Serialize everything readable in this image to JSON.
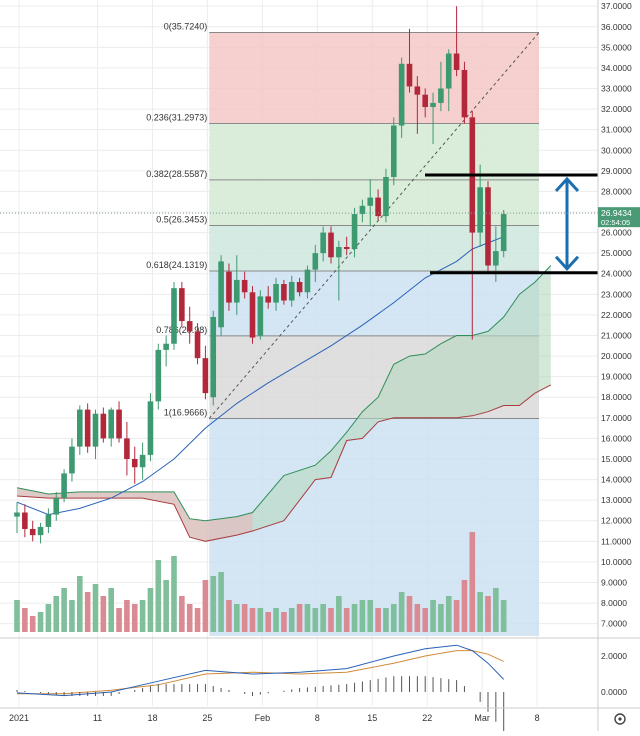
{
  "chart_data": {
    "type": "candlestick",
    "price_axis": {
      "ticks": [
        "37.0000",
        "36.0000",
        "35.0000",
        "34.0000",
        "33.0000",
        "32.0000",
        "31.0000",
        "30.0000",
        "29.0000",
        "28.0000",
        "27.0000",
        "26.0000",
        "25.0000",
        "24.0000",
        "23.0000",
        "22.0000",
        "21.0000",
        "20.0000",
        "19.0000",
        "18.0000",
        "17.0000",
        "16.0000",
        "15.0000",
        "14.0000",
        "13.0000",
        "12.0000",
        "11.0000",
        "10.0000",
        "9.0000",
        "8.0000",
        "7.0000"
      ],
      "ylim": [
        6.4,
        37.3
      ],
      "last_price": "26.9434",
      "countdown": "02:54:05"
    },
    "time_axis": {
      "labels": [
        "2021",
        "11",
        "18",
        "25",
        "Feb",
        "8",
        "15",
        "22",
        "Mar",
        "8"
      ],
      "positions_day": [
        0,
        10,
        17,
        24,
        31,
        38,
        45,
        52,
        59,
        66
      ]
    },
    "fibonacci": {
      "levels": [
        {
          "ratio": "0",
          "value": 35.724,
          "label": "0(35.7240)"
        },
        {
          "ratio": "0.236",
          "value": 31.2973,
          "label": "0.236(31.2973)"
        },
        {
          "ratio": "0.382",
          "value": 28.5587,
          "label": "0.382(28.5587)"
        },
        {
          "ratio": "0.5",
          "value": 26.3453,
          "label": "0.5(26.3453)"
        },
        {
          "ratio": "0.618",
          "value": 24.1319,
          "label": "0.618(24.1319)"
        },
        {
          "ratio": "0.786",
          "value": 20.98,
          "label": "0.786(20.98)"
        },
        {
          "ratio": "1",
          "value": 16.9666,
          "label": "1(16.9666)"
        }
      ],
      "zone_colors": [
        "#f4c7c7",
        "#d3ead3",
        "#d3ead3",
        "#cfe6df",
        "#cde0f2",
        "#d9d9d9",
        "#cde0f2"
      ]
    },
    "annotations": {
      "horizontal_lines": [
        28.8,
        24.05
      ],
      "arrow_range": [
        24.05,
        28.8
      ]
    },
    "candles": [
      {
        "d": 0,
        "o": 12.2,
        "h": 12.9,
        "l": 11.4,
        "c": 12.4
      },
      {
        "d": 1,
        "o": 12.4,
        "h": 12.8,
        "l": 11.2,
        "c": 11.6
      },
      {
        "d": 2,
        "o": 11.6,
        "h": 12.0,
        "l": 11.0,
        "c": 11.3
      },
      {
        "d": 3,
        "o": 11.3,
        "h": 11.9,
        "l": 10.9,
        "c": 11.7
      },
      {
        "d": 4,
        "o": 11.7,
        "h": 12.6,
        "l": 11.4,
        "c": 12.3
      },
      {
        "d": 5,
        "o": 12.3,
        "h": 13.4,
        "l": 12.0,
        "c": 13.1
      },
      {
        "d": 6,
        "o": 13.1,
        "h": 14.5,
        "l": 12.9,
        "c": 14.3
      },
      {
        "d": 7,
        "o": 14.3,
        "h": 16.0,
        "l": 13.9,
        "c": 15.6
      },
      {
        "d": 8,
        "o": 15.6,
        "h": 17.6,
        "l": 15.2,
        "c": 17.4
      },
      {
        "d": 9,
        "o": 17.4,
        "h": 17.7,
        "l": 15.3,
        "c": 15.6
      },
      {
        "d": 10,
        "o": 15.6,
        "h": 17.4,
        "l": 15.0,
        "c": 17.2
      },
      {
        "d": 11,
        "o": 17.2,
        "h": 17.5,
        "l": 15.8,
        "c": 16.0
      },
      {
        "d": 12,
        "o": 16.0,
        "h": 17.5,
        "l": 15.6,
        "c": 17.4
      },
      {
        "d": 13,
        "o": 17.4,
        "h": 17.8,
        "l": 15.8,
        "c": 16.0
      },
      {
        "d": 14,
        "o": 16.0,
        "h": 16.8,
        "l": 14.2,
        "c": 15.0
      },
      {
        "d": 15,
        "o": 15.0,
        "h": 15.6,
        "l": 13.8,
        "c": 14.6
      },
      {
        "d": 16,
        "o": 14.6,
        "h": 15.8,
        "l": 14.0,
        "c": 15.2
      },
      {
        "d": 17,
        "o": 15.2,
        "h": 18.2,
        "l": 14.9,
        "c": 17.8
      },
      {
        "d": 18,
        "o": 17.8,
        "h": 20.6,
        "l": 17.4,
        "c": 20.3
      },
      {
        "d": 19,
        "o": 20.3,
        "h": 21.0,
        "l": 19.5,
        "c": 20.6
      },
      {
        "d": 20,
        "o": 20.6,
        "h": 23.6,
        "l": 20.3,
        "c": 23.3
      },
      {
        "d": 21,
        "o": 23.3,
        "h": 23.6,
        "l": 21.4,
        "c": 21.7
      },
      {
        "d": 22,
        "o": 21.7,
        "h": 22.4,
        "l": 20.6,
        "c": 21.2
      },
      {
        "d": 23,
        "o": 21.2,
        "h": 21.6,
        "l": 19.6,
        "c": 19.9
      },
      {
        "d": 24,
        "o": 19.9,
        "h": 20.5,
        "l": 17.9,
        "c": 18.2
      },
      {
        "d": 25,
        "o": 18.0,
        "h": 22.2,
        "l": 17.6,
        "c": 21.9
      },
      {
        "d": 26,
        "o": 21.4,
        "h": 24.9,
        "l": 21.0,
        "c": 24.6
      },
      {
        "d": 27,
        "o": 24.1,
        "h": 24.5,
        "l": 22.2,
        "c": 22.6
      },
      {
        "d": 28,
        "o": 22.6,
        "h": 24.9,
        "l": 22.0,
        "c": 23.7
      },
      {
        "d": 29,
        "o": 23.7,
        "h": 24.1,
        "l": 22.8,
        "c": 23.1
      },
      {
        "d": 30,
        "o": 23.1,
        "h": 23.4,
        "l": 20.6,
        "c": 20.9
      },
      {
        "d": 31,
        "o": 21.0,
        "h": 23.2,
        "l": 20.8,
        "c": 22.9
      },
      {
        "d": 32,
        "o": 22.9,
        "h": 23.4,
        "l": 22.3,
        "c": 22.6
      },
      {
        "d": 33,
        "o": 22.6,
        "h": 23.8,
        "l": 22.2,
        "c": 23.5
      },
      {
        "d": 34,
        "o": 23.5,
        "h": 23.7,
        "l": 22.5,
        "c": 22.7
      },
      {
        "d": 35,
        "o": 22.7,
        "h": 23.9,
        "l": 22.4,
        "c": 23.6
      },
      {
        "d": 36,
        "o": 23.6,
        "h": 23.8,
        "l": 22.9,
        "c": 23.1
      },
      {
        "d": 37,
        "o": 23.1,
        "h": 24.4,
        "l": 22.8,
        "c": 24.2
      },
      {
        "d": 38,
        "o": 24.2,
        "h": 25.4,
        "l": 23.6,
        "c": 25.0
      },
      {
        "d": 39,
        "o": 25.0,
        "h": 26.3,
        "l": 24.6,
        "c": 26.0
      },
      {
        "d": 40,
        "o": 26.0,
        "h": 26.3,
        "l": 24.5,
        "c": 24.8
      },
      {
        "d": 41,
        "o": 24.8,
        "h": 25.6,
        "l": 22.7,
        "c": 25.3
      },
      {
        "d": 42,
        "o": 25.3,
        "h": 25.8,
        "l": 24.9,
        "c": 25.2
      },
      {
        "d": 43,
        "o": 25.2,
        "h": 27.2,
        "l": 24.8,
        "c": 26.9
      },
      {
        "d": 44,
        "o": 26.9,
        "h": 27.6,
        "l": 26.5,
        "c": 27.3
      },
      {
        "d": 45,
        "o": 27.3,
        "h": 28.6,
        "l": 26.3,
        "c": 27.7
      },
      {
        "d": 46,
        "o": 27.7,
        "h": 28.1,
        "l": 26.6,
        "c": 26.8
      },
      {
        "d": 47,
        "o": 26.8,
        "h": 29.1,
        "l": 26.5,
        "c": 28.7
      },
      {
        "d": 48,
        "o": 28.7,
        "h": 31.6,
        "l": 28.3,
        "c": 31.2
      },
      {
        "d": 49,
        "o": 31.2,
        "h": 34.5,
        "l": 30.6,
        "c": 34.2
      },
      {
        "d": 50,
        "o": 34.2,
        "h": 35.9,
        "l": 32.8,
        "c": 33.1
      },
      {
        "d": 51,
        "o": 33.1,
        "h": 33.6,
        "l": 30.8,
        "c": 32.7
      },
      {
        "d": 52,
        "o": 32.7,
        "h": 33.0,
        "l": 31.6,
        "c": 32.1
      },
      {
        "d": 53,
        "o": 32.1,
        "h": 32.8,
        "l": 30.3,
        "c": 32.3
      },
      {
        "d": 54,
        "o": 32.3,
        "h": 34.3,
        "l": 31.9,
        "c": 33.0
      },
      {
        "d": 55,
        "o": 33.0,
        "h": 34.9,
        "l": 31.9,
        "c": 34.7
      },
      {
        "d": 56,
        "o": 34.7,
        "h": 37.0,
        "l": 33.6,
        "c": 33.9
      },
      {
        "d": 57,
        "o": 33.9,
        "h": 34.3,
        "l": 31.3,
        "c": 31.6
      },
      {
        "d": 58,
        "o": 31.6,
        "h": 31.9,
        "l": 20.8,
        "c": 26.0
      },
      {
        "d": 59,
        "o": 26.0,
        "h": 29.3,
        "l": 25.3,
        "c": 28.2
      },
      {
        "d": 60,
        "o": 28.2,
        "h": 28.5,
        "l": 24.1,
        "c": 24.4
      },
      {
        "d": 61,
        "o": 24.4,
        "h": 26.3,
        "l": 23.6,
        "c": 25.1
      },
      {
        "d": 62,
        "o": 25.1,
        "h": 27.1,
        "l": 24.8,
        "c": 26.9
      }
    ],
    "ma_line": [
      [
        0,
        12.9
      ],
      [
        4,
        12.3
      ],
      [
        8,
        12.6
      ],
      [
        12,
        13.1
      ],
      [
        16,
        13.9
      ],
      [
        20,
        15.0
      ],
      [
        24,
        16.5
      ],
      [
        28,
        17.7
      ],
      [
        32,
        18.7
      ],
      [
        36,
        19.6
      ],
      [
        40,
        20.5
      ],
      [
        44,
        21.5
      ],
      [
        48,
        22.6
      ],
      [
        52,
        23.8
      ],
      [
        56,
        24.6
      ],
      [
        58,
        25.2
      ],
      [
        60,
        25.5
      ],
      [
        62,
        25.8
      ]
    ],
    "cloud_upper": [
      [
        0,
        13.6
      ],
      [
        4,
        13.3
      ],
      [
        8,
        13.4
      ],
      [
        12,
        13.4
      ],
      [
        16,
        13.4
      ],
      [
        20,
        13.4
      ],
      [
        22,
        12.1
      ],
      [
        24,
        12.0
      ],
      [
        28,
        12.2
      ],
      [
        30,
        12.4
      ],
      [
        34,
        14.2
      ],
      [
        38,
        14.7
      ],
      [
        40,
        15.4
      ],
      [
        42,
        16.3
      ],
      [
        44,
        17.3
      ],
      [
        46,
        18.0
      ],
      [
        48,
        19.6
      ],
      [
        50,
        20.0
      ],
      [
        52,
        20.1
      ],
      [
        54,
        20.6
      ],
      [
        56,
        21.0
      ],
      [
        58,
        21.0
      ],
      [
        60,
        21.2
      ],
      [
        62,
        21.9
      ],
      [
        64,
        23.0
      ],
      [
        66,
        23.6
      ],
      [
        68,
        24.4
      ]
    ],
    "cloud_lower": [
      [
        0,
        13.2
      ],
      [
        4,
        13.1
      ],
      [
        8,
        13.1
      ],
      [
        12,
        13.1
      ],
      [
        16,
        13.1
      ],
      [
        20,
        12.8
      ],
      [
        22,
        11.2
      ],
      [
        24,
        11.0
      ],
      [
        28,
        11.3
      ],
      [
        30,
        11.5
      ],
      [
        34,
        12.0
      ],
      [
        38,
        14.0
      ],
      [
        40,
        14.1
      ],
      [
        42,
        15.9
      ],
      [
        44,
        16.0
      ],
      [
        46,
        16.8
      ],
      [
        48,
        17.0
      ],
      [
        50,
        17.0
      ],
      [
        52,
        17.0
      ],
      [
        54,
        17.0
      ],
      [
        56,
        17.0
      ],
      [
        58,
        17.1
      ],
      [
        60,
        17.3
      ],
      [
        62,
        17.6
      ],
      [
        64,
        17.6
      ],
      [
        66,
        18.2
      ],
      [
        68,
        18.6
      ]
    ],
    "volume": [
      0.8,
      0.6,
      0.4,
      0.5,
      0.7,
      0.9,
      1.1,
      0.8,
      1.4,
      1.0,
      1.2,
      0.9,
      1.1,
      0.6,
      0.8,
      0.7,
      0.8,
      1.1,
      1.8,
      1.3,
      1.9,
      0.9,
      0.7,
      0.6,
      1.3,
      1.4,
      1.5,
      0.8,
      0.7,
      0.7,
      0.6,
      0.6,
      0.5,
      0.6,
      0.5,
      0.6,
      0.7,
      0.7,
      0.6,
      0.7,
      0.6,
      0.9,
      0.6,
      0.7,
      0.8,
      0.8,
      0.6,
      0.6,
      0.7,
      1.0,
      0.9,
      0.7,
      0.6,
      0.8,
      0.7,
      0.9,
      0.8,
      1.3,
      2.5,
      1.0,
      0.9,
      1.1,
      0.8
    ],
    "macd_line": [
      [
        0,
        -0.05
      ],
      [
        6,
        -0.2
      ],
      [
        12,
        0.0
      ],
      [
        18,
        0.6
      ],
      [
        24,
        1.2
      ],
      [
        30,
        1.0
      ],
      [
        36,
        1.1
      ],
      [
        42,
        1.3
      ],
      [
        48,
        2.0
      ],
      [
        52,
        2.4
      ],
      [
        56,
        2.6
      ],
      [
        58,
        2.3
      ],
      [
        60,
        1.6
      ],
      [
        62,
        0.7
      ]
    ],
    "signal_line": [
      [
        0,
        -0.1
      ],
      [
        6,
        -0.1
      ],
      [
        12,
        0.1
      ],
      [
        18,
        0.4
      ],
      [
        24,
        1.0
      ],
      [
        30,
        1.1
      ],
      [
        36,
        1.0
      ],
      [
        42,
        1.1
      ],
      [
        48,
        1.6
      ],
      [
        52,
        2.0
      ],
      [
        56,
        2.3
      ],
      [
        58,
        2.3
      ],
      [
        60,
        2.1
      ],
      [
        62,
        1.7
      ]
    ],
    "macd_axis_ticks": [
      "2.0000",
      "0.0000"
    ],
    "colors": {
      "up": "#3d9970",
      "down": "#b2283a",
      "up_volume": "#7fbf9b",
      "down_volume": "#d98a92",
      "ma": "#2a62b8",
      "cloud_up": "#2f8f5a",
      "cloud_down": "#a83c3c",
      "annotation": "#000000",
      "arrow": "#1b6fb0"
    }
  }
}
